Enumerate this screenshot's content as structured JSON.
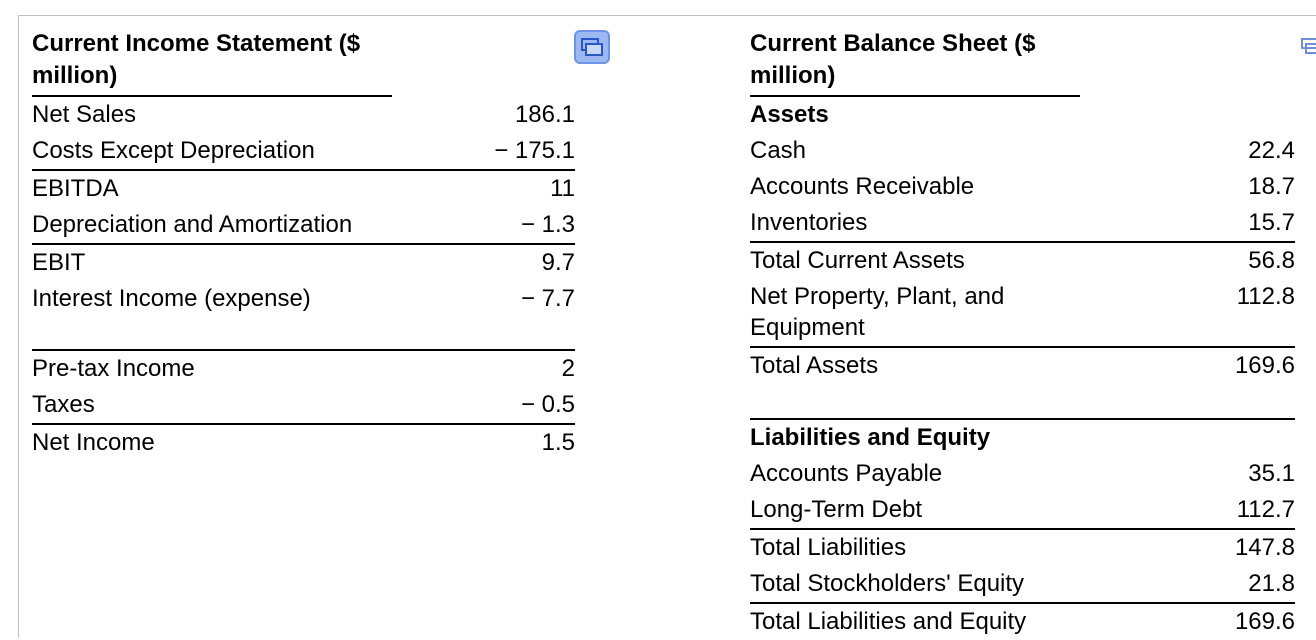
{
  "income": {
    "title": "Current Income Statement ($ million)",
    "rows": [
      {
        "label": "Net Sales",
        "value": "186.1"
      },
      {
        "label": "Costs Except Depreciation",
        "value": "− 175.1"
      },
      {
        "label": "EBITDA",
        "value": "11"
      },
      {
        "label": "Depreciation and Amortization",
        "value": "− 1.3"
      },
      {
        "label": "EBIT",
        "value": "9.7"
      },
      {
        "label": "Interest Income (expense)",
        "value": "− 7.7"
      },
      {
        "label": "Pre-tax Income",
        "value": "2"
      },
      {
        "label": "Taxes",
        "value": "− 0.5"
      },
      {
        "label": "Net Income",
        "value": "1.5"
      }
    ]
  },
  "balance": {
    "title": "Current Balance Sheet ($ million)",
    "assets_header": "Assets",
    "assets": [
      {
        "label": "Cash",
        "value": "22.4"
      },
      {
        "label": "Accounts Receivable",
        "value": "18.7"
      },
      {
        "label": "Inventories",
        "value": "15.7"
      },
      {
        "label": "Total Current Assets",
        "value": "56.8"
      },
      {
        "label": "Net Property, Plant, and Equipment",
        "value": "112.8"
      },
      {
        "label": "Total Assets",
        "value": "169.6"
      }
    ],
    "liabilities_header": "Liabilities and Equity",
    "liabilities": [
      {
        "label": "Accounts Payable",
        "value": "35.1"
      },
      {
        "label": "Long-Term Debt",
        "value": "112.7"
      },
      {
        "label": "Total Liabilities",
        "value": "147.8"
      },
      {
        "label": "Total Stockholders' Equity",
        "value": "21.8"
      },
      {
        "label": "Total Liabilities and Equity",
        "value": "169.6"
      }
    ]
  },
  "icons": {
    "copy_button": "copy-table-icon"
  },
  "colors": {
    "icon_bg": "#9cb8f2",
    "icon_border": "#6f93e6"
  }
}
